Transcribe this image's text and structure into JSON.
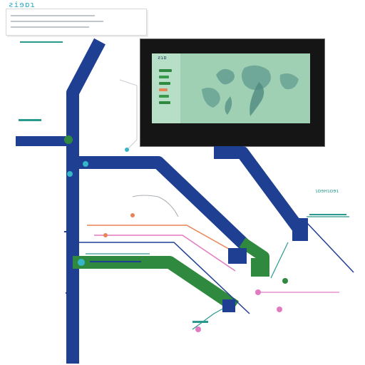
{
  "header": {
    "title": "ƨiɘɒɿ"
  },
  "screen": {
    "label": "ƨɿɒ"
  },
  "captions": {
    "right_label": "ɿɒɘʜɿɒɘɿ"
  },
  "colors": {
    "navy": "#1f3f93",
    "green": "#2f8a3f",
    "teal": "#2a9a8f",
    "orange": "#e98456",
    "cyan": "#35b6c9",
    "pink": "#e27ac2",
    "map_bg": "#9fd0b4"
  }
}
